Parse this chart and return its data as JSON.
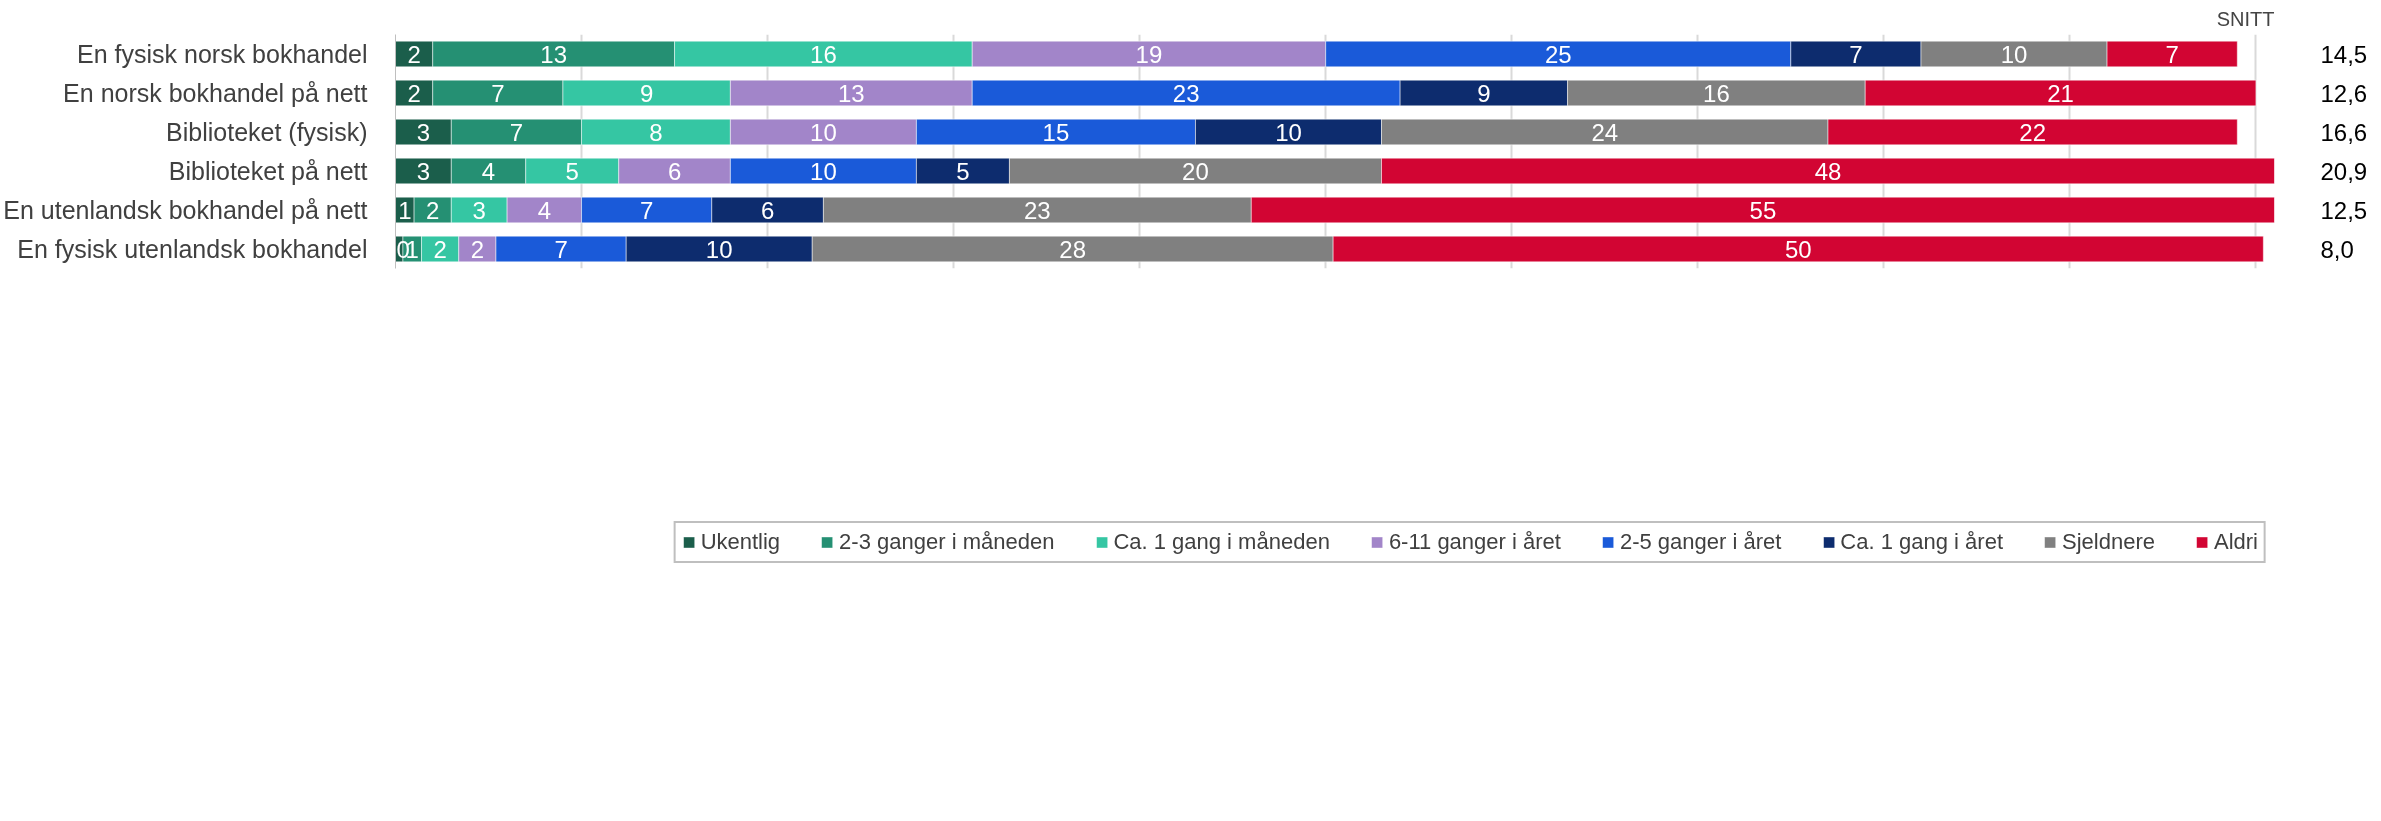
{
  "chart_data": {
    "type": "bar",
    "orientation": "horizontal",
    "stacked": true,
    "grid": "x",
    "legend": "bottom",
    "tick_labels": "y",
    "categories": [
      "En fysisk norsk bokhandel",
      "En norsk bokhandel på nett",
      "Biblioteket (fysisk)",
      "Biblioteket på nett",
      "En utenlandsk bokhandel på nett",
      "En fysisk utenlandsk bokhandel"
    ],
    "xlim": [
      0,
      101
    ],
    "xticks": [
      {
        "value": 0,
        "label": null
      },
      {
        "value": 10,
        "label": null
      },
      {
        "value": 20,
        "label": null
      },
      {
        "value": 30,
        "label": null
      },
      {
        "value": 40,
        "label": null
      },
      {
        "value": 50,
        "label": null
      },
      {
        "value": 60,
        "label": null
      },
      {
        "value": 70,
        "label": null
      },
      {
        "value": 80,
        "label": null
      },
      {
        "value": 90,
        "label": null
      },
      {
        "value": 100,
        "label": null
      }
    ],
    "series": [
      {
        "name": "Ukentlig",
        "color": "#1b5e4b",
        "values": [
          2,
          2,
          3,
          3,
          1,
          0.4
        ],
        "value_labels": [
          "2",
          "2",
          "3",
          "3",
          "1",
          "0"
        ]
      },
      {
        "name": "2-3 ganger i måneden",
        "color": "#259073",
        "values": [
          13,
          7,
          7,
          4,
          2,
          1
        ],
        "value_labels": [
          "13",
          "7",
          "7",
          "4",
          "2",
          "1"
        ]
      },
      {
        "name": "Ca. 1 gang i måneden",
        "color": "#35c6a3",
        "values": [
          16,
          9,
          8,
          5,
          3,
          2
        ],
        "value_labels": [
          "16",
          "9",
          "8",
          "5",
          "3",
          "2"
        ]
      },
      {
        "name": "6-11 ganger i året",
        "color": "#a285c9",
        "values": [
          19,
          13,
          10,
          6,
          4,
          2
        ],
        "value_labels": [
          "19",
          "13",
          "10",
          "6",
          "4",
          "2"
        ]
      },
      {
        "name": "2-5 ganger i året",
        "color": "#1a5ad9",
        "values": [
          25,
          23,
          15,
          10,
          7,
          7
        ],
        "value_labels": [
          "25",
          "23",
          "15",
          "10",
          "7",
          "7"
        ]
      },
      {
        "name": "Ca. 1 gang i året",
        "color": "#0d2c6e",
        "values": [
          7,
          9,
          10,
          5,
          6,
          10
        ],
        "value_labels": [
          "7",
          "9",
          "10",
          "5",
          "6",
          "10"
        ]
      },
      {
        "name": "Sjeldnere",
        "color": "#808080",
        "values": [
          10,
          16,
          24,
          20,
          23,
          28
        ],
        "value_labels": [
          "10",
          "16",
          "24",
          "20",
          "23",
          "28"
        ]
      },
      {
        "name": "Aldri",
        "color": "#d20533",
        "values": [
          7,
          21,
          22,
          48,
          55,
          50
        ],
        "value_labels": [
          "7",
          "21",
          "22",
          "48",
          "55",
          "50"
        ]
      }
    ],
    "annotations": [
      "SNITT",
      "14,5",
      "12,6",
      "16,6",
      "20,9",
      "12,5",
      "8,0"
    ]
  }
}
